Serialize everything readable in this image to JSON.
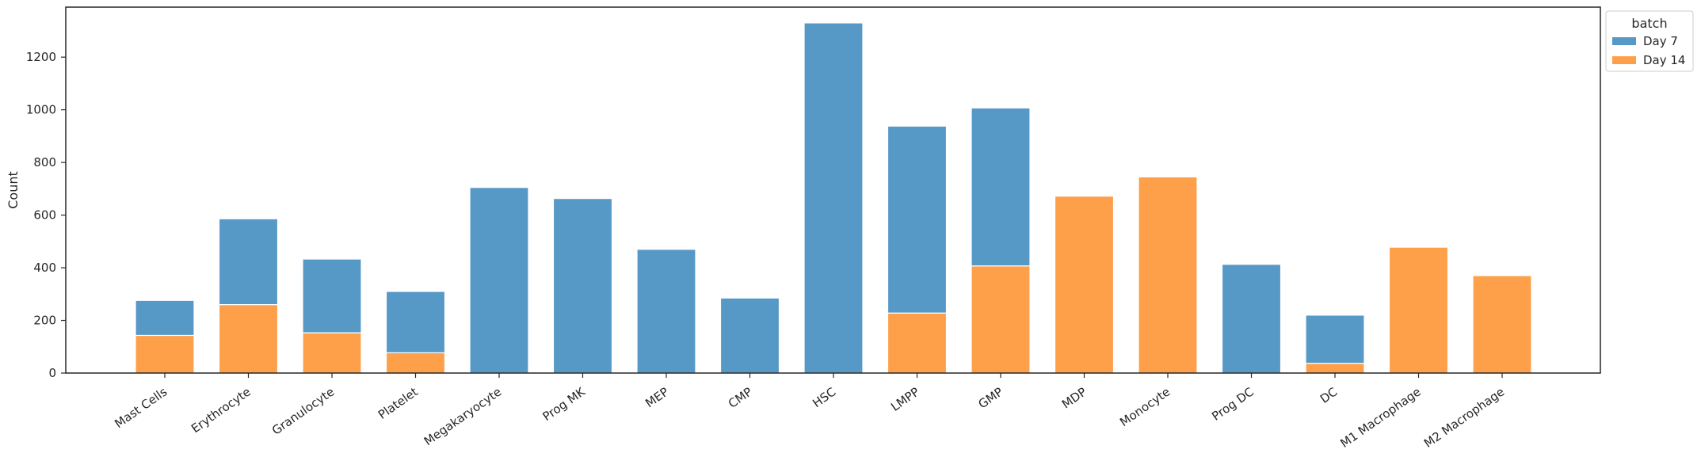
{
  "chart_data": {
    "type": "bar",
    "stacked": true,
    "title": "",
    "xlabel": "",
    "ylabel": "Count",
    "ylim": [
      0,
      1390
    ],
    "yticks": [
      0,
      200,
      400,
      600,
      800,
      1000,
      1200
    ],
    "grid": false,
    "legend": {
      "title": "batch",
      "placement": "top-right, outside plot"
    },
    "categories": [
      "Mast Cells",
      "Erythrocyte",
      "Granulocyte",
      "Platelet",
      "Megakaryocyte",
      "Prog MK",
      "MEP",
      "CMP",
      "HSC",
      "LMPP",
      "GMP",
      "MDP",
      "Monocyte",
      "Prog DC",
      "DC",
      "M1 Macrophage",
      "M2 Macrophage"
    ],
    "series": [
      {
        "name": "Day 7",
        "color": "#5698c6",
        "values": [
          133,
          326,
          280,
          233,
          705,
          663,
          470,
          285,
          1330,
          710,
          600,
          0,
          0,
          413,
          183,
          0,
          0
        ]
      },
      {
        "name": "Day 14",
        "color": "#fe9f4a",
        "values": [
          143,
          260,
          153,
          77,
          0,
          0,
          0,
          0,
          0,
          228,
          407,
          672,
          745,
          0,
          37,
          478,
          370
        ]
      }
    ]
  }
}
